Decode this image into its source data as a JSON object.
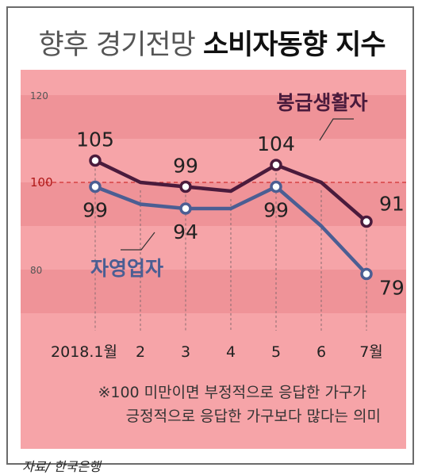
{
  "header": {
    "title_part1": "향후 경기전망",
    "title_part2": "소비자동향 지수"
  },
  "chart_data": {
    "type": "line",
    "categories": [
      "2018.1월",
      "2",
      "3",
      "4",
      "5",
      "6",
      "7월"
    ],
    "ylim": [
      70,
      130
    ],
    "yticks": [
      80,
      100,
      120
    ],
    "reference_line": 100,
    "series": [
      {
        "name": "봉급생활자",
        "values": [
          105,
          100,
          99,
          98,
          104,
          100,
          91
        ],
        "labeled": [
          0,
          2,
          4,
          6
        ],
        "color": "#4a1b3c"
      },
      {
        "name": "자영업자",
        "values": [
          99,
          95,
          94,
          94,
          99,
          90,
          79
        ],
        "labeled": [
          0,
          2,
          4,
          6
        ],
        "color": "#4b5e93"
      }
    ],
    "note": [
      "※100 미만이면 부정적으로 응답한 가구가",
      "긍정적으로 응답한 가구보다 많다는 의미"
    ]
  },
  "source": "자료/ 한국은행"
}
